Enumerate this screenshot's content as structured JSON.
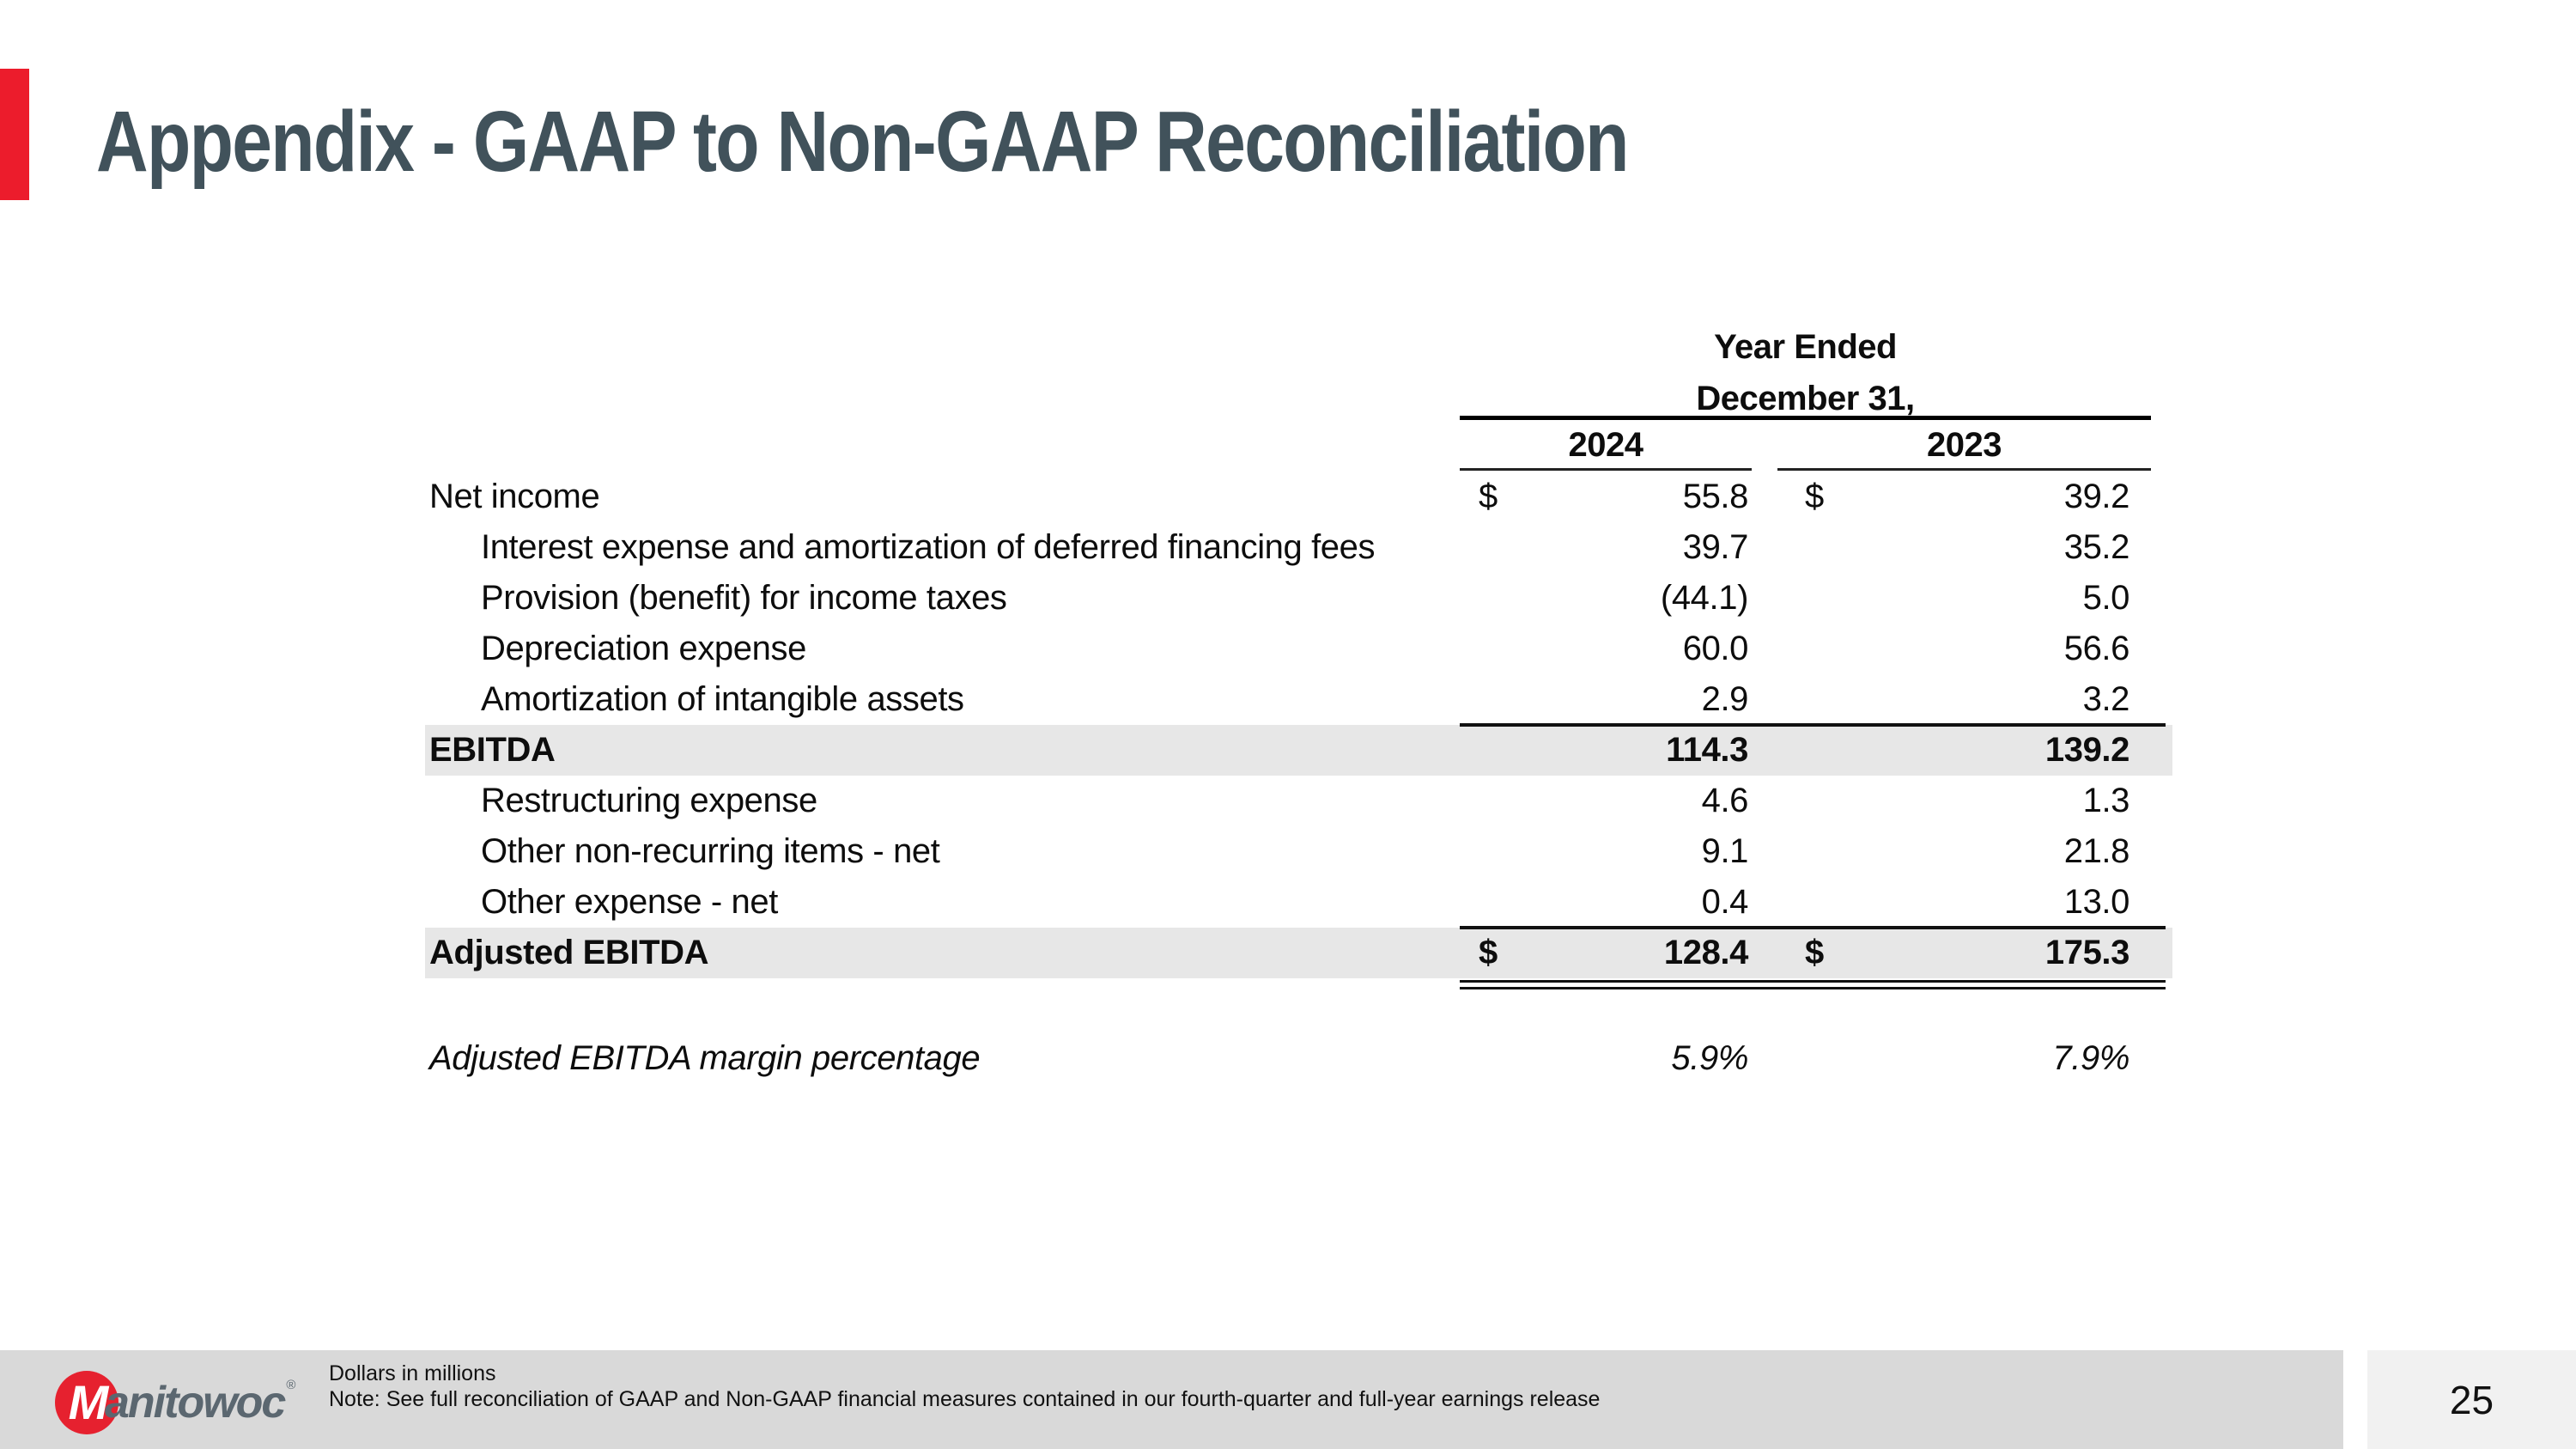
{
  "slide": {
    "title": "Appendix - GAAP to Non-GAAP Reconciliation",
    "page_number": "25",
    "colors": {
      "accent_red": "#ec1c2c",
      "title_text": "#41525b",
      "row_shade": "#e7e7e7",
      "footer_bar": "#d9d9d9",
      "page_box": "#f1f1f1",
      "logo_red": "#e6212f",
      "logo_gray": "#5b6770"
    }
  },
  "table": {
    "header": {
      "period_line1": "Year Ended",
      "period_line2": "December 31,",
      "year_col1": "2024",
      "year_col2": "2023"
    },
    "rows": [
      {
        "label": "Net income",
        "indent": false,
        "bold": false,
        "shaded": false,
        "currency": "$",
        "v1": "55.8",
        "v2": "39.2"
      },
      {
        "label": "Interest expense and amortization of deferred financing fees",
        "indent": true,
        "v1": "39.7",
        "v2": "35.2"
      },
      {
        "label": "Provision (benefit) for income taxes",
        "indent": true,
        "v1": "(44.1)",
        "v2": "5.0"
      },
      {
        "label": "Depreciation expense",
        "indent": true,
        "v1": "60.0",
        "v2": "56.6"
      },
      {
        "label": "Amortization of intangible assets",
        "indent": true,
        "v1": "2.9",
        "v2": "3.2"
      },
      {
        "label": "EBITDA",
        "bold": true,
        "shaded": true,
        "line_top": true,
        "v1": "114.3",
        "v2": "139.2"
      },
      {
        "label": "Restructuring expense",
        "indent": true,
        "v1": "4.6",
        "v2": "1.3"
      },
      {
        "label": "Other non-recurring items - net",
        "indent": true,
        "v1": "9.1",
        "v2": "21.8"
      },
      {
        "label": "Other expense - net",
        "indent": true,
        "v1": "0.4",
        "v2": "13.0"
      },
      {
        "label": "Adjusted EBITDA",
        "bold": true,
        "shaded": true,
        "line_top": true,
        "double_bottom": true,
        "currency": "$",
        "v1": "128.4",
        "v2": "175.3"
      }
    ],
    "margin_row": {
      "label": "Adjusted EBITDA margin percentage",
      "v1": "5.9%",
      "v2": "7.9%"
    }
  },
  "footer": {
    "logo_m": "M",
    "logo_text": "anitowoc",
    "logo_reg": "®",
    "note_line1": "Dollars in millions",
    "note_line2": "Note: See full reconciliation of GAAP and Non-GAAP financial measures contained in our fourth-quarter and full-year earnings release"
  }
}
